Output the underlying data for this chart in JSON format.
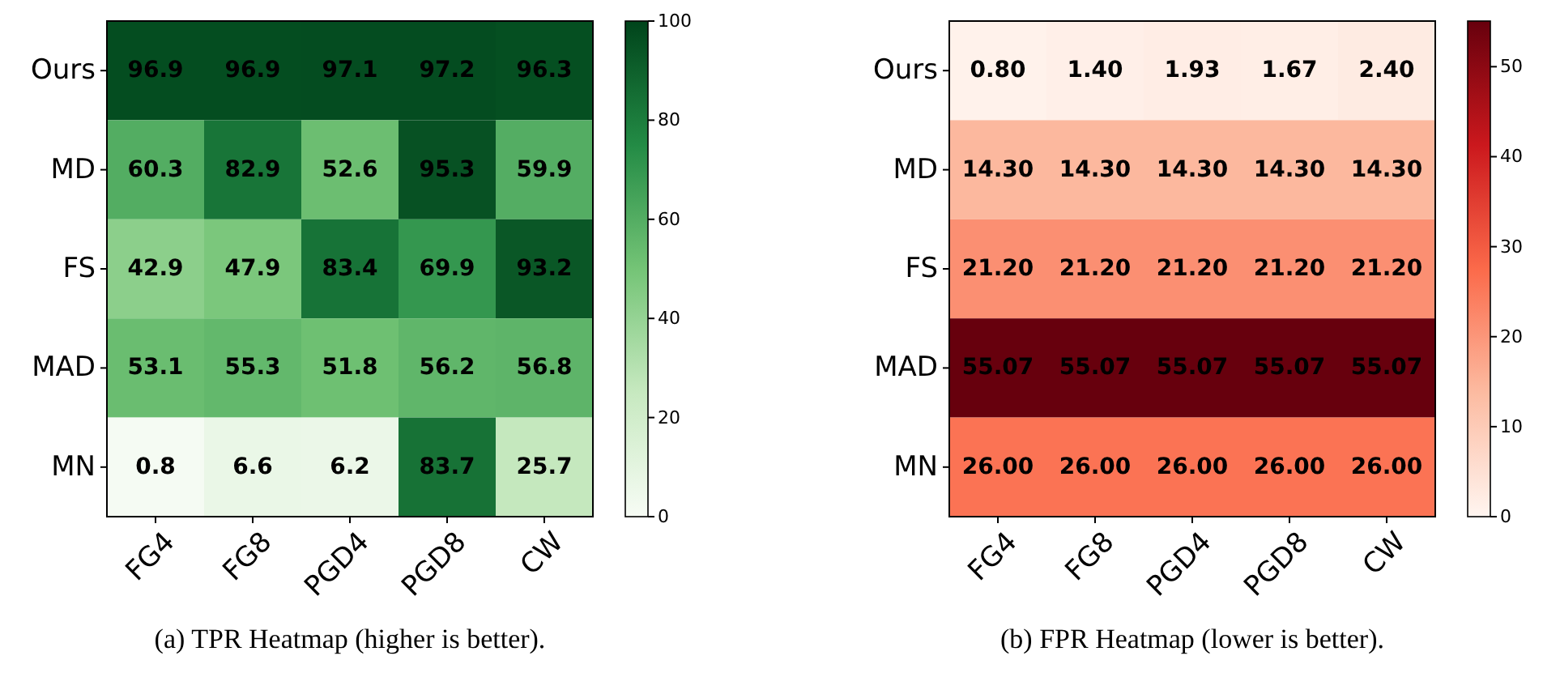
{
  "chart_data": [
    {
      "type": "heatmap",
      "title": "(a) TPR Heatmap (higher is better).",
      "categories": [
        "FG4",
        "FG8",
        "PGD4",
        "PGD8",
        "CW"
      ],
      "y_categories": [
        "Ours",
        "MD",
        "FS",
        "MAD",
        "MN"
      ],
      "cells": [
        [
          96.9,
          96.9,
          97.1,
          97.2,
          96.3
        ],
        [
          60.3,
          82.9,
          52.6,
          95.3,
          59.9
        ],
        [
          42.9,
          47.9,
          83.4,
          69.9,
          93.2
        ],
        [
          53.1,
          55.3,
          51.8,
          56.2,
          56.8
        ],
        [
          0.8,
          6.6,
          6.2,
          83.7,
          25.7
        ]
      ],
      "data_labels": true,
      "colors": [
        "#f7fcf5",
        "#c7e9c0",
        "#74c476",
        "#238b45",
        "#00441b"
      ],
      "clim": [
        0,
        100
      ],
      "cticks": [
        0,
        20,
        40,
        60,
        80,
        100
      ]
    },
    {
      "type": "heatmap",
      "title": "(b) FPR Heatmap (lower is better).",
      "categories": [
        "FG4",
        "FG8",
        "PGD4",
        "PGD8",
        "CW"
      ],
      "y_categories": [
        "Ours",
        "MD",
        "FS",
        "MAD",
        "MN"
      ],
      "cells": [
        [
          0.8,
          1.4,
          1.93,
          1.67,
          2.4
        ],
        [
          14.3,
          14.3,
          14.3,
          14.3,
          14.3
        ],
        [
          21.2,
          21.2,
          21.2,
          21.2,
          21.2
        ],
        [
          55.07,
          55.07,
          55.07,
          55.07,
          55.07
        ],
        [
          26,
          26,
          26,
          26,
          26
        ]
      ],
      "cell_labels": [
        [
          "0.80",
          "1.40",
          "1.93",
          "1.67",
          "2.40"
        ],
        [
          "14.30",
          "14.30",
          "14.30",
          "14.30",
          "14.30"
        ],
        [
          "21.20",
          "21.20",
          "21.20",
          "21.20",
          "21.20"
        ],
        [
          "55.07",
          "55.07",
          "55.07",
          "55.07",
          "55.07"
        ],
        [
          "26.00",
          "26.00",
          "26.00",
          "26.00",
          "26.00"
        ]
      ],
      "colors": [
        "#fff5f0",
        "#fcbba1",
        "#fb6a4a",
        "#cb181d",
        "#67000d"
      ],
      "clim": [
        0,
        55.07
      ],
      "cticks": [
        0,
        10,
        20,
        30,
        40,
        50
      ]
    }
  ]
}
